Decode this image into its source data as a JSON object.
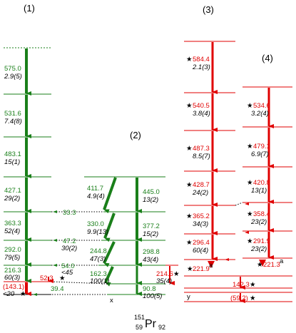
{
  "band_labels": [
    "(1)",
    "(2)",
    "(3)",
    "(4)"
  ],
  "nucleus": {
    "mass": "151",
    "z": "59",
    "symbol": "Pr",
    "n": "92"
  },
  "colors": {
    "green": "#1a7f1a",
    "red": "#e00000",
    "black": "#000000"
  },
  "band1": {
    "transitions": [
      {
        "energy": "575.0",
        "intensity": "2.9(5)"
      },
      {
        "energy": "531.6",
        "intensity": "7.4(8)"
      },
      {
        "energy": "483.1",
        "intensity": "15(1)"
      },
      {
        "energy": "427.1",
        "intensity": "29(2)"
      },
      {
        "energy": "363.3",
        "intensity": "52(4)"
      },
      {
        "energy": "292.0",
        "intensity": "79(5)"
      },
      {
        "energy": "216.3",
        "intensity": "60(3)"
      }
    ],
    "bottom": {
      "energy": "(143.1)",
      "intensity": "<20"
    }
  },
  "band2": {
    "in_band": [
      {
        "energy": "445.0",
        "intensity": "13(2)"
      },
      {
        "energy": "377.2",
        "intensity": "15(2)"
      },
      {
        "energy": "298.8",
        "intensity": "43(4)"
      }
    ],
    "cross": [
      {
        "energy": "411.7",
        "intensity": "4.9(4)"
      },
      {
        "energy": "330.0",
        "intensity": "9.9(13)"
      },
      {
        "energy": "244.8",
        "intensity": "47(3)"
      },
      {
        "energy": "162.3",
        "intensity": "100(1)"
      }
    ],
    "dotted": [
      "33.3",
      "47.2",
      "54.0",
      "39.4"
    ],
    "dotted_intensity": {
      "47.2": "30(2)",
      "54.0": "<45"
    },
    "red_side": {
      "energy": "214.6",
      "intensity": "35(4)"
    },
    "bottom": {
      "energy": "90.8",
      "intensity": "100(5)"
    },
    "red_dotted": "52.3",
    "x_label": "x"
  },
  "band3": {
    "transitions": [
      {
        "energy": "584.4",
        "intensity": "2.1(3)"
      },
      {
        "energy": "540.5",
        "intensity": "3.8(4)"
      },
      {
        "energy": "487.3",
        "intensity": "8.5(7)"
      },
      {
        "energy": "428.7",
        "intensity": "24(2)"
      },
      {
        "energy": "365.2",
        "intensity": "34(3)"
      },
      {
        "energy": "296.4",
        "intensity": "60(4)"
      }
    ],
    "bottom": {
      "energy": "221.9",
      "superscript": "a"
    }
  },
  "band4": {
    "transitions": [
      {
        "energy": "534.6",
        "intensity": "3.2(4)"
      },
      {
        "energy": "479.1",
        "intensity": "6.9(7)"
      },
      {
        "energy": "420.8",
        "intensity": "13(1)"
      },
      {
        "energy": "358.4",
        "intensity": "23(2)"
      },
      {
        "energy": "291.9",
        "intensity": "23(2)"
      }
    ],
    "bottom": {
      "energy": "221.3",
      "superscript": "a"
    }
  },
  "lower": {
    "e1": "142.3",
    "e2": "(59.2)",
    "y_label": "y"
  },
  "star": "★"
}
